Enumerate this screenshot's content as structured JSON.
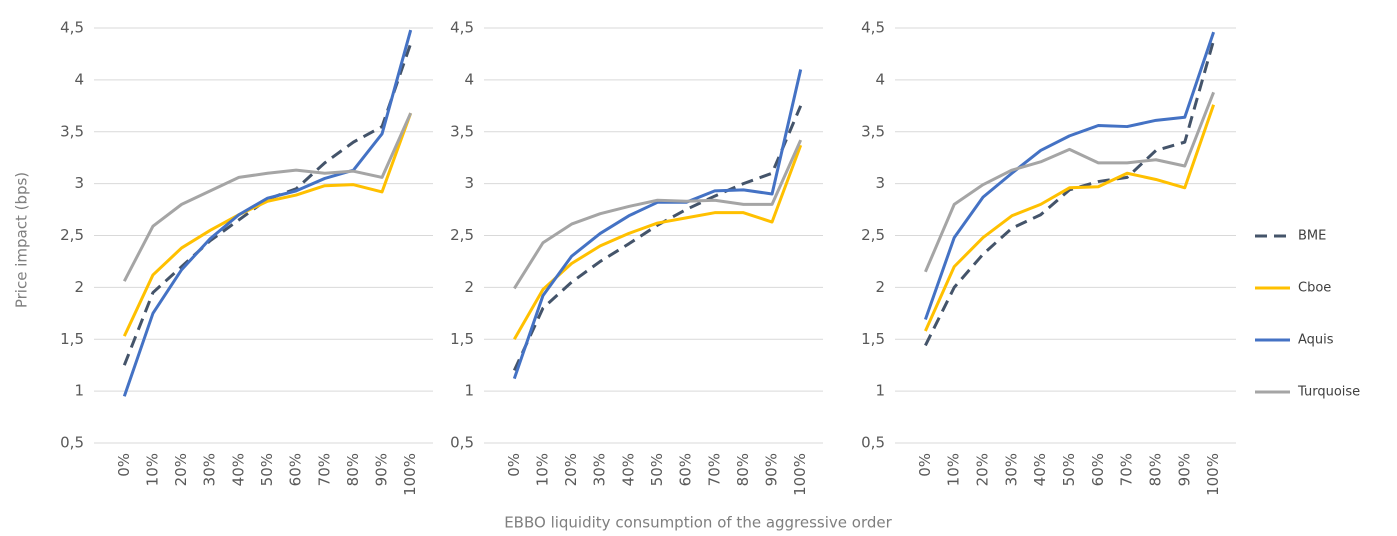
{
  "y_label": "Price impact (bps)",
  "x_label": "EBBO liquidity consumption of the aggressive order",
  "legend_position": "right",
  "chart_data": [
    {
      "type": "line",
      "categories": [
        "0%",
        "10%",
        "20%",
        "30%",
        "40%",
        "50%",
        "60%",
        "70%",
        "80%",
        "90%",
        "100%"
      ],
      "ylim": [
        0.5,
        4.5
      ],
      "yticks": [
        {
          "value": 0.5,
          "label": "0,5"
        },
        1,
        {
          "value": 1.5,
          "label": "1,5"
        },
        2,
        {
          "value": 2.5,
          "label": "2,5"
        },
        3,
        {
          "value": 3.5,
          "label": "3,5"
        },
        4,
        {
          "value": 4.5,
          "label": "4,5"
        }
      ],
      "grid": true,
      "series": [
        {
          "name": "BME",
          "color": "#44546a",
          "dash": true,
          "values": [
            1.25,
            1.95,
            2.2,
            2.45,
            2.65,
            2.85,
            2.95,
            3.2,
            3.4,
            3.55,
            4.35
          ]
        },
        {
          "name": "Cboe",
          "color": "#ffc000",
          "values": [
            1.53,
            2.12,
            2.38,
            2.55,
            2.7,
            2.83,
            2.89,
            2.98,
            2.99,
            2.92,
            3.68
          ]
        },
        {
          "name": "Aquis",
          "color": "#4472c4",
          "values": [
            0.95,
            1.75,
            2.17,
            2.47,
            2.7,
            2.86,
            2.93,
            3.05,
            3.13,
            3.48,
            4.48
          ]
        },
        {
          "name": "Turquoise",
          "color": "#a5a5a5",
          "values": [
            2.06,
            2.59,
            2.8,
            2.93,
            3.06,
            3.1,
            3.13,
            3.1,
            3.12,
            3.06,
            3.68
          ]
        }
      ]
    },
    {
      "type": "line",
      "categories": [
        "0%",
        "10%",
        "20%",
        "30%",
        "40%",
        "50%",
        "60%",
        "70%",
        "80%",
        "90%",
        "100%"
      ],
      "ylim": [
        0.5,
        4.5
      ],
      "yticks": [
        {
          "value": 0.5,
          "label": "0,5"
        },
        1,
        {
          "value": 1.5,
          "label": "1,5"
        },
        2,
        {
          "value": 2.5,
          "label": "2,5"
        },
        3,
        {
          "value": 3.5,
          "label": "3,5"
        },
        4,
        {
          "value": 4.5,
          "label": "4,5"
        }
      ],
      "grid": true,
      "series": [
        {
          "name": "BME",
          "color": "#44546a",
          "dash": true,
          "values": [
            1.2,
            1.8,
            2.05,
            2.25,
            2.42,
            2.6,
            2.75,
            2.88,
            3.0,
            3.1,
            3.75
          ]
        },
        {
          "name": "Cboe",
          "color": "#ffc000",
          "values": [
            1.5,
            1.98,
            2.23,
            2.4,
            2.52,
            2.62,
            2.67,
            2.72,
            2.72,
            2.63,
            3.37
          ]
        },
        {
          "name": "Aquis",
          "color": "#4472c4",
          "values": [
            1.12,
            1.92,
            2.3,
            2.52,
            2.69,
            2.82,
            2.82,
            2.93,
            2.94,
            2.9,
            4.1
          ]
        },
        {
          "name": "Turquoise",
          "color": "#a5a5a5",
          "values": [
            1.99,
            2.43,
            2.61,
            2.71,
            2.78,
            2.84,
            2.83,
            2.84,
            2.8,
            2.8,
            3.42
          ]
        }
      ]
    },
    {
      "type": "line",
      "categories": [
        "0%",
        "10%",
        "20%",
        "30%",
        "40%",
        "50%",
        "60%",
        "70%",
        "80%",
        "90%",
        "100%"
      ],
      "ylim": [
        0.5,
        4.5
      ],
      "yticks": [
        {
          "value": 0.5,
          "label": "0,5"
        },
        1,
        {
          "value": 1.5,
          "label": "1,5"
        },
        2,
        {
          "value": 2.5,
          "label": "2,5"
        },
        3,
        {
          "value": 3.5,
          "label": "3,5"
        },
        4,
        {
          "value": 4.5,
          "label": "4,5"
        }
      ],
      "grid": true,
      "series": [
        {
          "name": "BME",
          "color": "#44546a",
          "dash": true,
          "values": [
            1.44,
            2.0,
            2.32,
            2.57,
            2.7,
            2.94,
            3.02,
            3.06,
            3.32,
            3.4,
            4.38
          ]
        },
        {
          "name": "Cboe",
          "color": "#ffc000",
          "values": [
            1.58,
            2.2,
            2.48,
            2.69,
            2.8,
            2.96,
            2.97,
            3.1,
            3.04,
            2.96,
            3.76
          ]
        },
        {
          "name": "Aquis",
          "color": "#4472c4",
          "values": [
            1.69,
            2.48,
            2.87,
            3.1,
            3.32,
            3.46,
            3.56,
            3.55,
            3.61,
            3.64,
            4.46
          ]
        },
        {
          "name": "Turquoise",
          "color": "#a5a5a5",
          "values": [
            2.15,
            2.8,
            2.99,
            3.13,
            3.21,
            3.33,
            3.2,
            3.2,
            3.23,
            3.17,
            3.88
          ]
        }
      ]
    }
  ]
}
